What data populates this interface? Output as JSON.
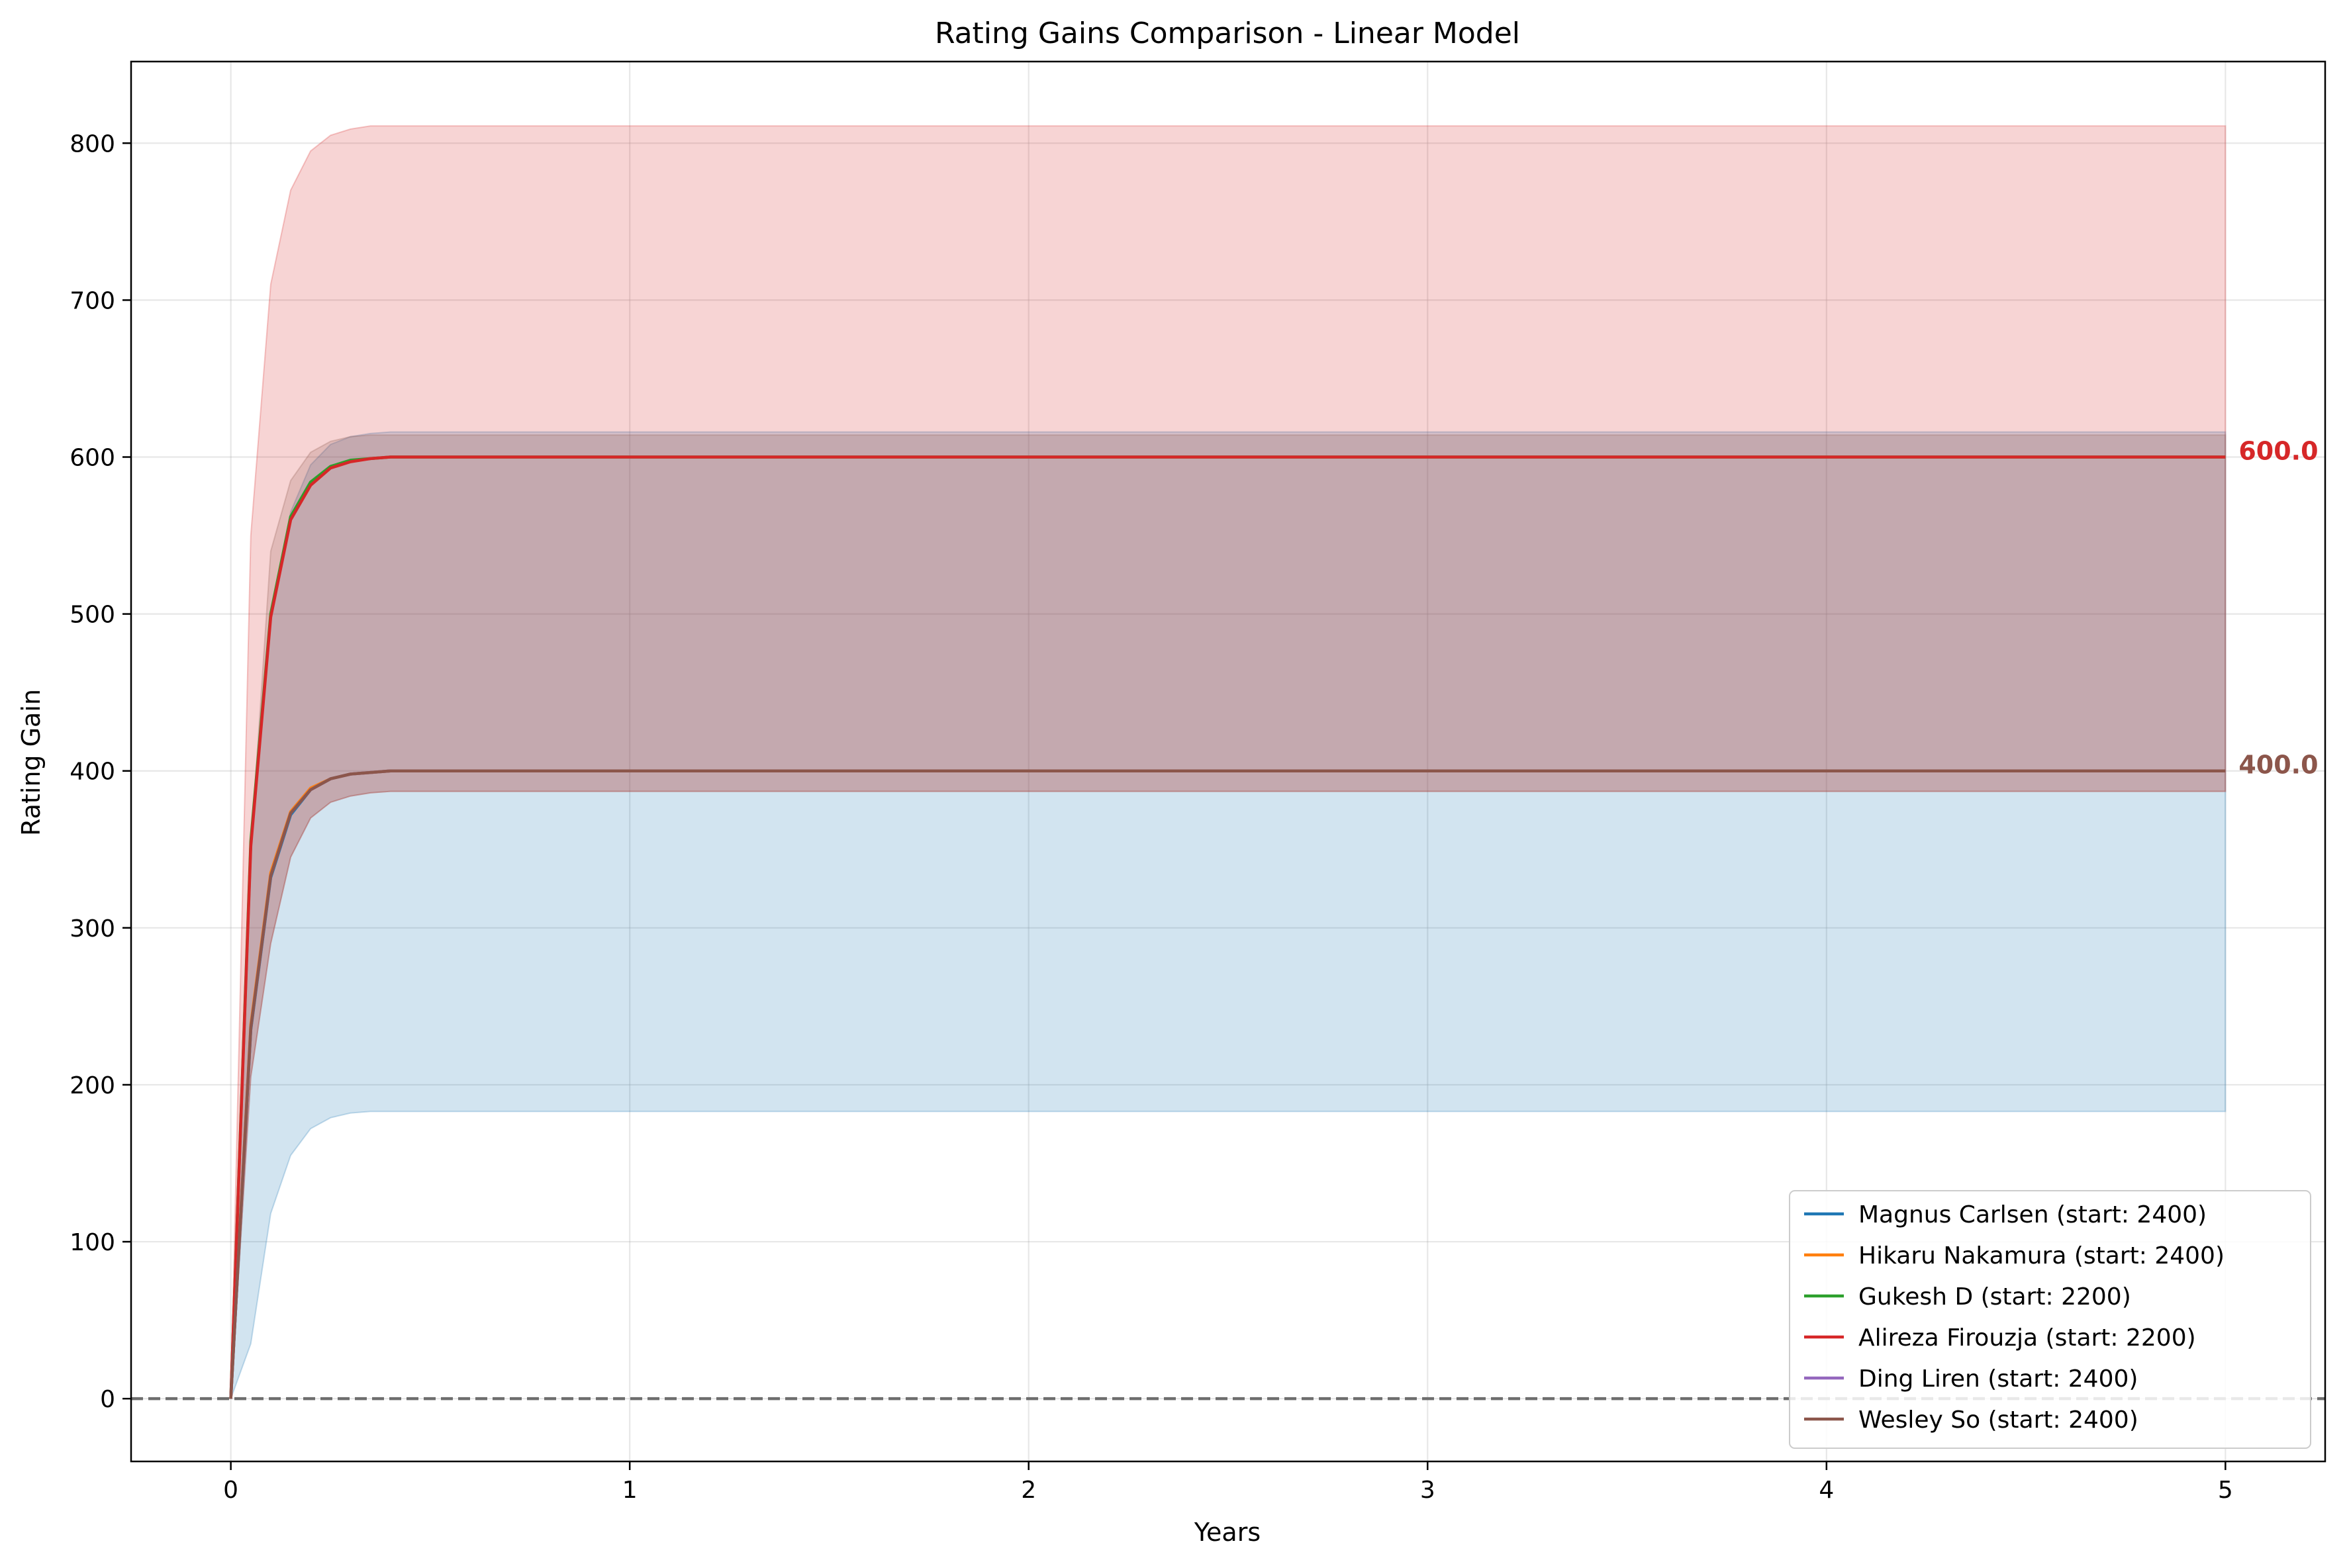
{
  "chart_data": {
    "type": "line",
    "title": "Rating Gains Comparison - Linear Model",
    "xlabel": "Years",
    "ylabel": "Rating Gain",
    "xlim": [
      -0.25,
      5.25
    ],
    "ylim": [
      -40,
      852
    ],
    "xticks": [
      0,
      1,
      2,
      3,
      4,
      5
    ],
    "yticks": [
      0,
      100,
      200,
      300,
      400,
      500,
      600,
      700,
      800
    ],
    "grid": true,
    "legend_position": "bottom-right",
    "reference_line": {
      "y": 0,
      "style": "dashed",
      "color": "#6e6e6e"
    },
    "x": [
      0,
      0.05,
      0.1,
      0.15,
      0.2,
      0.25,
      0.3,
      0.35,
      0.4,
      0.5,
      1,
      2,
      3,
      4,
      5
    ],
    "series": [
      {
        "name": "Magnus Carlsen (start: 2400)",
        "color": "#1f77b4",
        "values": [
          0,
          235,
          332,
          372,
          388,
          395,
          398,
          399,
          400,
          400,
          400,
          400,
          400,
          400,
          400
        ],
        "band_lower": [
          0,
          35,
          118,
          155,
          172,
          179,
          182,
          183,
          183,
          183,
          183,
          183,
          183,
          183,
          183
        ],
        "band_upper": [
          0,
          350,
          500,
          565,
          595,
          608,
          613,
          615,
          616,
          616,
          616,
          616,
          616,
          616,
          616
        ]
      },
      {
        "name": "Hikaru Nakamura (start: 2400)",
        "color": "#ff7f0e",
        "values": [
          0,
          238,
          335,
          374,
          389,
          395,
          398,
          399,
          400,
          400,
          400,
          400,
          400,
          400,
          400
        ]
      },
      {
        "name": "Gukesh D (start: 2200)",
        "color": "#2ca02c",
        "values": [
          0,
          355,
          500,
          562,
          584,
          594,
          598,
          599,
          600,
          600,
          600,
          600,
          600,
          600,
          600
        ]
      },
      {
        "name": "Alireza Firouzja (start: 2200)",
        "color": "#d62728",
        "values": [
          0,
          352,
          498,
          560,
          582,
          593,
          597,
          599,
          600,
          600,
          600,
          600,
          600,
          600,
          600
        ],
        "band_lower": [
          0,
          205,
          290,
          345,
          370,
          380,
          384,
          386,
          387,
          387,
          387,
          387,
          387,
          387,
          387
        ],
        "band_upper": [
          0,
          550,
          710,
          770,
          795,
          805,
          809,
          811,
          811,
          811,
          811,
          811,
          811,
          811,
          811
        ],
        "end_label": "600.0"
      },
      {
        "name": "Ding Liren (start: 2400)",
        "color": "#9467bd",
        "values": [
          0,
          236,
          333,
          373,
          388,
          395,
          398,
          399,
          400,
          400,
          400,
          400,
          400,
          400,
          400
        ]
      },
      {
        "name": "Wesley So (start: 2400)",
        "color": "#8c564b",
        "values": [
          0,
          236,
          333,
          373,
          388,
          395,
          398,
          399,
          400,
          400,
          400,
          400,
          400,
          400,
          400
        ],
        "band_lower": [
          0,
          205,
          290,
          345,
          370,
          380,
          384,
          386,
          387,
          387,
          387,
          387,
          387,
          387,
          387
        ],
        "band_upper": [
          0,
          350,
          540,
          585,
          603,
          610,
          613,
          614,
          614,
          614,
          614,
          614,
          614,
          614,
          614
        ],
        "end_label": "400.0"
      }
    ]
  }
}
